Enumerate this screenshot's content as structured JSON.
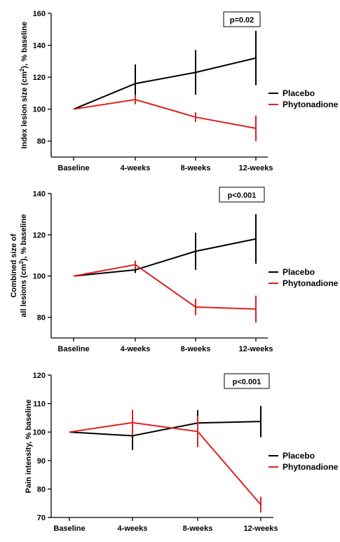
{
  "chart_data": [
    {
      "type": "line",
      "categories": [
        "Baseline",
        "4-weeks",
        "8-weeks",
        "12-weeks"
      ],
      "ylabel_lines": [
        [
          "Index lesion size (cm",
          "2",
          "), % baseline"
        ]
      ],
      "ylim": [
        70,
        160
      ],
      "yticks": [
        80,
        100,
        120,
        140,
        160
      ],
      "pvalue": "p=0.02",
      "series": [
        {
          "name": "Placebo",
          "color": "#000000",
          "values": [
            100,
            116,
            123,
            132
          ],
          "errors": [
            0,
            12,
            14,
            17
          ]
        },
        {
          "name": "Phytonadione",
          "color": "#e02020",
          "values": [
            100,
            106,
            95,
            88
          ],
          "errors": [
            0,
            3,
            3,
            8
          ]
        }
      ]
    },
    {
      "type": "line",
      "categories": [
        "Baseline",
        "4-weeks",
        "8-weeks",
        "12-weeks"
      ],
      "ylabel_lines": [
        [
          "Combined size of"
        ],
        [
          "all lesions (cm",
          "2",
          "), % baseline"
        ]
      ],
      "ylim": [
        70,
        140
      ],
      "yticks": [
        80,
        100,
        120,
        140
      ],
      "pvalue": "p<0.001",
      "series": [
        {
          "name": "Placebo",
          "color": "#000000",
          "values": [
            100,
            103,
            112,
            118
          ],
          "errors": [
            0,
            1.5,
            9,
            12
          ]
        },
        {
          "name": "Phytonadione",
          "color": "#e02020",
          "values": [
            100,
            105.5,
            85,
            84
          ],
          "errors": [
            0,
            2,
            4,
            6.5
          ]
        }
      ]
    },
    {
      "type": "line",
      "categories": [
        "Baseline",
        "4-weeks",
        "8-weeks",
        "12-weeks"
      ],
      "ylabel_lines": [
        [
          "Pain intensity, % baseline"
        ]
      ],
      "ylim": [
        70,
        120
      ],
      "yticks": [
        70,
        80,
        90,
        100,
        110,
        120
      ],
      "pvalue": "p<0.001",
      "series": [
        {
          "name": "Placebo",
          "color": "#000000",
          "values": [
            100,
            98.7,
            103.2,
            103.7
          ],
          "errors": [
            0,
            5,
            4.5,
            5.5
          ]
        },
        {
          "name": "Phytonadione",
          "color": "#e02020",
          "values": [
            100,
            103.3,
            100.2,
            74.5
          ],
          "errors": [
            0,
            4.5,
            5.5,
            2.8
          ]
        }
      ]
    }
  ]
}
